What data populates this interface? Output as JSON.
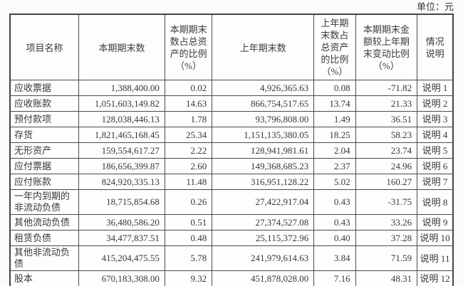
{
  "unit_label": "单位：元",
  "table": {
    "columns": [
      {
        "key": "name",
        "label": "项目名称"
      },
      {
        "key": "current",
        "label": "本期期末数"
      },
      {
        "key": "current_pct",
        "label": "本期期末数占总资产的比例（%）"
      },
      {
        "key": "prior",
        "label": "上年期末数"
      },
      {
        "key": "prior_pct",
        "label": "上年期末数占总资产的比例（%）"
      },
      {
        "key": "change_pct",
        "label": "本期期末金额较上年期末变动比例（%）"
      },
      {
        "key": "note",
        "label": "情况说明"
      }
    ],
    "rows": [
      {
        "name": "应收票据",
        "current": "1,388,400.00",
        "current_pct": "0.02",
        "prior": "4,926,365.63",
        "prior_pct": "0.08",
        "change_pct": "-71.82",
        "note": "说明 1"
      },
      {
        "name": "应收账款",
        "current": "1,051,603,149.82",
        "current_pct": "14.63",
        "prior": "866,754,517.65",
        "prior_pct": "13.74",
        "change_pct": "21.33",
        "note": "说明 2"
      },
      {
        "name": "预付款项",
        "current": "128,038,446.13",
        "current_pct": "1.78",
        "prior": "93,796,808.00",
        "prior_pct": "1.49",
        "change_pct": "36.51",
        "note": "说明 3"
      },
      {
        "name": "存货",
        "current": "1,821,465,168.45",
        "current_pct": "25.34",
        "prior": "1,151,135,380.05",
        "prior_pct": "18.25",
        "change_pct": "58.23",
        "note": "说明 4"
      },
      {
        "name": "无形资产",
        "current": "159,554,617.27",
        "current_pct": "2.22",
        "prior": "128,941,981.61",
        "prior_pct": "2.04",
        "change_pct": "23.74",
        "note": "说明 5"
      },
      {
        "name": "应付票据",
        "current": "186,656,399.87",
        "current_pct": "2.60",
        "prior": "149,368,685.23",
        "prior_pct": "2.37",
        "change_pct": "24.96",
        "note": "说明 6"
      },
      {
        "name": "应付账款",
        "current": "824,920,335.13",
        "current_pct": "11.48",
        "prior": "316,951,128.22",
        "prior_pct": "5.02",
        "change_pct": "160.27",
        "note": "说明 7"
      },
      {
        "name": "一年内到期的非流动负债",
        "current": "18,715,854.68",
        "current_pct": "0.26",
        "prior": "27,422,917.04",
        "prior_pct": "0.43",
        "change_pct": "-31.75",
        "note": "说明 8"
      },
      {
        "name": "其他流动负债",
        "current": "36,480,586.20",
        "current_pct": "0.51",
        "prior": "27,374,527.08",
        "prior_pct": "0.43",
        "change_pct": "33.26",
        "note": "说明 9"
      },
      {
        "name": "租赁负债",
        "current": "34,477,837.51",
        "current_pct": "0.48",
        "prior": "25,115,372.96",
        "prior_pct": "0.40",
        "change_pct": "37.28",
        "note": "说明 10"
      },
      {
        "name": "其他非流动负债",
        "current": "415,204,475.55",
        "current_pct": "5.78",
        "prior": "241,979,614.63",
        "prior_pct": "3.84",
        "change_pct": "71.59",
        "note": "说明 11"
      },
      {
        "name": "股本",
        "current": "670,183,308.00",
        "current_pct": "9.32",
        "prior": "451,878,028.00",
        "prior_pct": "7.16",
        "change_pct": "48.31",
        "note": "说明 12"
      }
    ]
  }
}
